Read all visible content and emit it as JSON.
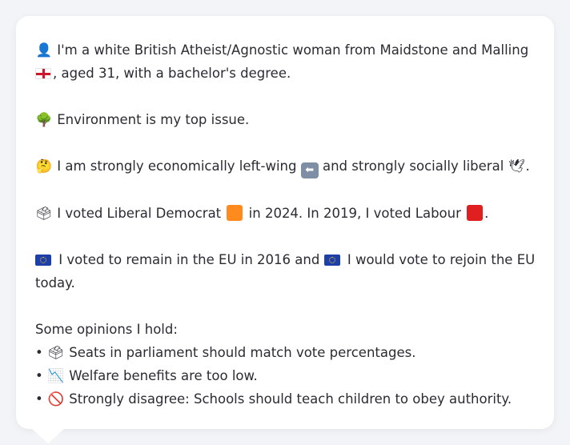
{
  "profile": {
    "intro_line1": "I'm a white British Atheist/Agnostic woman from Maidstone and Malling",
    "intro_line2": ", aged 31, with a bachelor's degree.",
    "top_issue": "Environment is my top issue.",
    "economics_a": "I am strongly economically left-wing",
    "economics_b": "and strongly socially liberal",
    "economics_end": ".",
    "vote_a": "I voted Liberal Democrat",
    "vote_b": "in 2024. In 2019, I voted Labour",
    "vote_end": ".",
    "eu_a": "I voted to remain in the EU in 2016 and",
    "eu_b": "I would vote to rejoin the EU",
    "eu_c": "today.",
    "opinions_heading": "Some opinions I hold:",
    "opinions": [
      {
        "bullet": "•",
        "icon": "ballot-box-icon",
        "glyph": "🗳",
        "text": "Seats in parliament should match vote percentages."
      },
      {
        "bullet": "•",
        "icon": "chart-decreasing-icon",
        "glyph": "📉",
        "text": "Welfare benefits are too low."
      },
      {
        "bullet": "•",
        "icon": "prohibited-icon",
        "glyph": "🚫",
        "text": "Strongly disagree: Schools should teach children to obey authority."
      }
    ]
  },
  "icons": {
    "person": "👤",
    "tree": "🌳",
    "thinking": "🤔",
    "arrow_left": "⬅",
    "dove": "🕊",
    "ballot": "🗳"
  },
  "colors": {
    "lib_dem": "#ff8a1e",
    "labour": "#e02020",
    "card_bg": "#ffffff",
    "page_bg": "#f2f4f7",
    "text": "#2b2b33"
  }
}
